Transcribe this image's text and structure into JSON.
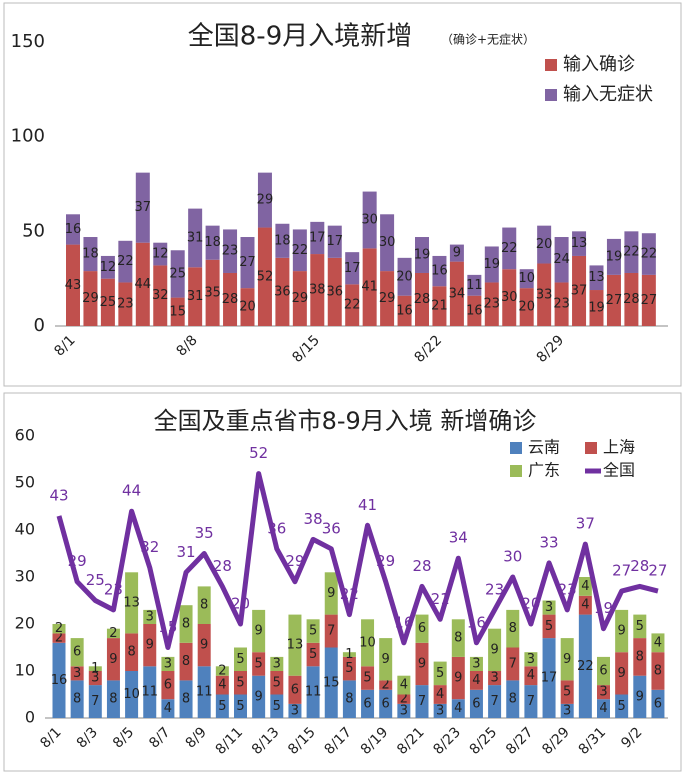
{
  "chart_data": [
    {
      "type": "bar",
      "title": "全国8-9月入境新增",
      "subtitle": "（确诊+无症状）",
      "categories": [
        "8/1",
        null,
        null,
        null,
        null,
        null,
        null,
        "8/8",
        null,
        null,
        null,
        null,
        null,
        null,
        "8/15",
        null,
        null,
        null,
        null,
        null,
        null,
        "8/22",
        null,
        null,
        null,
        null,
        null,
        null,
        "8/29",
        null,
        null,
        null,
        null,
        null
      ],
      "series": [
        {
          "name": "输入确诊",
          "color": "#c0504d",
          "values": [
            43,
            29,
            25,
            23,
            44,
            32,
            15,
            31,
            35,
            28,
            20,
            52,
            36,
            29,
            38,
            36,
            22,
            41,
            29,
            16,
            28,
            21,
            34,
            16,
            23,
            30,
            20,
            33,
            23,
            37,
            19,
            27,
            28,
            27
          ]
        },
        {
          "name": "输入无症状",
          "color": "#8064a2",
          "values": [
            16,
            18,
            12,
            22,
            37,
            12,
            25,
            31,
            18,
            23,
            27,
            29,
            18,
            22,
            17,
            17,
            17,
            30,
            30,
            20,
            19,
            16,
            9,
            11,
            19,
            22,
            10,
            20,
            24,
            13,
            13,
            19,
            22,
            22
          ]
        }
      ],
      "ylim": [
        0,
        150
      ],
      "yticks": [
        0,
        50,
        100,
        150
      ],
      "grid": false,
      "legend": "top-right"
    },
    {
      "type": "bar",
      "title": "全国及重点省市8-9月入境 新增确诊",
      "categories": [
        "8/1",
        null,
        "8/3",
        null,
        "8/5",
        null,
        "8/7",
        null,
        "8/9",
        null,
        "8/11",
        null,
        "8/13",
        null,
        "8/15",
        null,
        "8/17",
        null,
        "8/19",
        null,
        "8/21",
        null,
        "8/23",
        null,
        "8/25",
        null,
        "8/27",
        null,
        "8/29",
        null,
        "8/31",
        null,
        "9/2",
        null
      ],
      "series": [
        {
          "name": "云南",
          "color": "#4f81bd",
          "values": [
            16,
            8,
            7,
            8,
            10,
            11,
            4,
            8,
            11,
            5,
            5,
            9,
            5,
            3,
            11,
            15,
            8,
            6,
            6,
            3,
            7,
            3,
            4,
            6,
            7,
            8,
            7,
            17,
            3,
            22,
            4,
            5,
            9,
            6
          ]
        },
        {
          "name": "上海",
          "color": "#c0504d",
          "values": [
            2,
            3,
            3,
            9,
            8,
            9,
            6,
            8,
            9,
            4,
            5,
            5,
            5,
            6,
            5,
            7,
            5,
            5,
            2,
            2,
            9,
            4,
            9,
            4,
            3,
            7,
            4,
            5,
            5,
            4,
            3,
            9,
            8,
            8
          ]
        },
        {
          "name": "广东",
          "color": "#9bbb59",
          "values": [
            2,
            6,
            1,
            2,
            13,
            3,
            3,
            8,
            8,
            2,
            5,
            9,
            3,
            13,
            5,
            9,
            1,
            10,
            9,
            4,
            6,
            5,
            8,
            3,
            9,
            8,
            3,
            3,
            9,
            4,
            6,
            9,
            5,
            4
          ]
        },
        {
          "name": "全国",
          "color": "#7030a0",
          "type": "line",
          "values": [
            43,
            29,
            25,
            23,
            44,
            32,
            15,
            31,
            35,
            28,
            20,
            52,
            36,
            29,
            38,
            36,
            22,
            41,
            29,
            16,
            28,
            21,
            34,
            16,
            23,
            30,
            20,
            33,
            23,
            37,
            19,
            27,
            28,
            27
          ]
        }
      ],
      "ylim": [
        0,
        60
      ],
      "yticks": [
        0,
        10,
        20,
        30,
        40,
        50,
        60
      ],
      "grid": false,
      "legend": "top-right"
    }
  ]
}
